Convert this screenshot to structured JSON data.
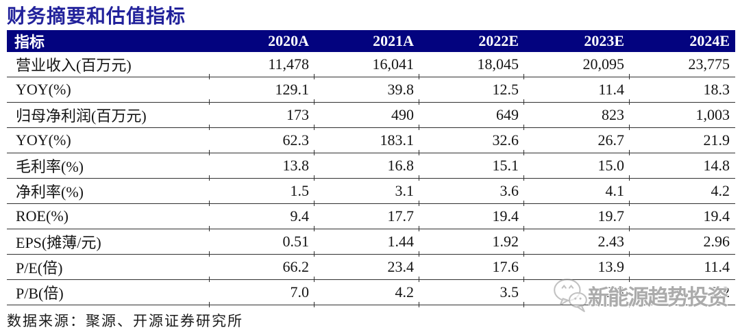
{
  "title": "财务摘要和估值指标",
  "table": {
    "header": [
      "指标",
      "2020A",
      "2021A",
      "2022E",
      "2023E",
      "2024E"
    ],
    "rows": [
      {
        "label": "营业收入(百万元)",
        "values": [
          "11,478",
          "16,041",
          "18,045",
          "20,095",
          "23,775"
        ]
      },
      {
        "label": "YOY(%)",
        "values": [
          "129.1",
          "39.8",
          "12.5",
          "11.4",
          "18.3"
        ]
      },
      {
        "label": "归母净利润(百万元)",
        "values": [
          "173",
          "490",
          "649",
          "823",
          "1,003"
        ]
      },
      {
        "label": "YOY(%)",
        "values": [
          "62.3",
          "183.1",
          "32.6",
          "26.7",
          "21.9"
        ]
      },
      {
        "label": "毛利率(%)",
        "values": [
          "13.8",
          "16.8",
          "15.1",
          "15.0",
          "14.8"
        ]
      },
      {
        "label": "净利率(%)",
        "values": [
          "1.5",
          "3.1",
          "3.6",
          "4.1",
          "4.2"
        ]
      },
      {
        "label": "ROE(%)",
        "values": [
          "9.4",
          "17.7",
          "19.4",
          "19.7",
          "19.4"
        ]
      },
      {
        "label": "EPS(摊薄/元)",
        "values": [
          "0.51",
          "1.44",
          "1.92",
          "2.43",
          "2.96"
        ]
      },
      {
        "label": "P/E(倍)",
        "values": [
          "66.2",
          "23.4",
          "17.6",
          "13.9",
          "11.4"
        ]
      },
      {
        "label": "P/B(倍)",
        "values": [
          "7.0",
          "4.2",
          "3.5",
          "2.8",
          "2.2"
        ]
      }
    ]
  },
  "source": "数据来源：聚源、开源证券研究所",
  "watermark": {
    "icon": "wechat-icon",
    "text": "新能源趋势投资"
  },
  "colors": {
    "header_bg": "#03037f",
    "header_text": "#ffffff",
    "title_text": "#22229b",
    "row_border": "#2f2f2f",
    "watermark_gray": "#8a8a8a"
  }
}
